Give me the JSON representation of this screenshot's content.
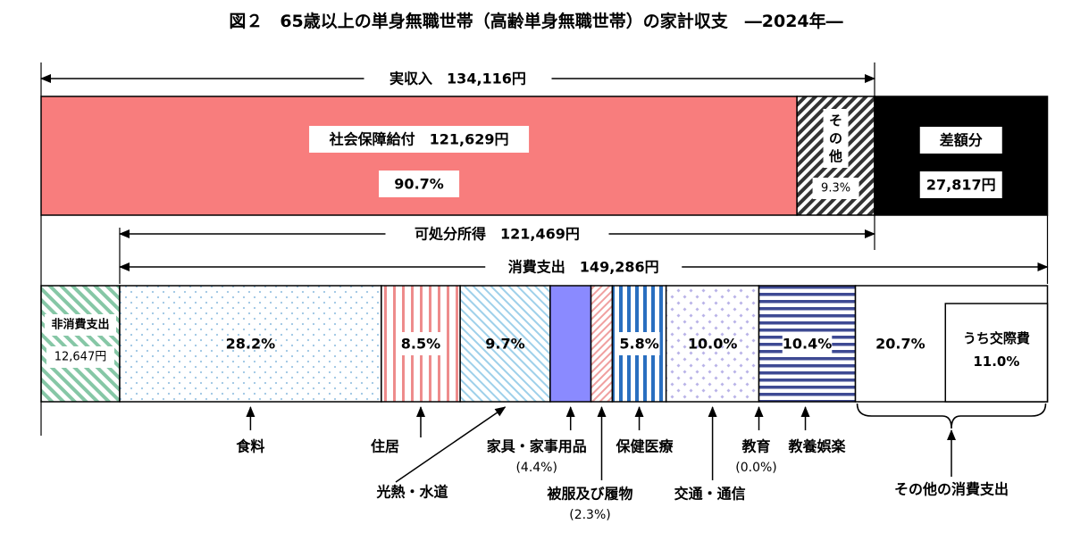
{
  "chart_data": {
    "type": "bar",
    "title": "図２　65歳以上の単身無職世帯（高齢単身無職世帯）の家計収支　―2024年―",
    "income": {
      "total_label": "実収入　134,116円",
      "total_value": 134116,
      "segments": [
        {
          "name": "社会保障給付",
          "label": "社会保障給付　121,629円",
          "value": 121629,
          "pct_label": "90.7%",
          "color": "#f87d7d"
        },
        {
          "name": "その他",
          "label": "その他",
          "pct_label": "9.3%",
          "value": 12487,
          "pattern": "diagonal-hatch"
        }
      ],
      "deficit": {
        "label": "差額分",
        "value_label": "27,817円",
        "value": 27817,
        "color": "#000000"
      }
    },
    "disposable_income": {
      "label": "可処分所得　121,469円",
      "value": 121469
    },
    "consumption": {
      "label": "消費支出　149,286円",
      "value": 149286
    },
    "non_consumption": {
      "label": "非消費支出",
      "value_label": "12,647円",
      "value": 12647,
      "pattern": "green-diagonal"
    },
    "expenditure_items": [
      {
        "key": "food",
        "name": "食料",
        "pct": 28.2,
        "pct_label": "28.2%",
        "pattern": "dots"
      },
      {
        "key": "housing",
        "name": "住居",
        "pct": 8.5,
        "pct_label": "8.5%",
        "pattern": "red-vertical-stripes"
      },
      {
        "key": "utilities",
        "name": "光熱・水道",
        "pct": 9.7,
        "pct_label": "9.7%",
        "pattern": "blue-diagonal"
      },
      {
        "key": "furniture",
        "name": "家具・家事用品",
        "pct": 4.4,
        "pct_label": "(4.4%)",
        "color": "#8a8aff"
      },
      {
        "key": "clothing",
        "name": "被服及び履物",
        "pct": 2.3,
        "pct_label": "(2.3%)",
        "pattern": "pink-diagonal"
      },
      {
        "key": "medical",
        "name": "保健医療",
        "pct": 5.8,
        "pct_label": "5.8%",
        "pattern": "blue-vertical-stripes"
      },
      {
        "key": "transport",
        "name": "交通・通信",
        "pct": 10.0,
        "pct_label": "10.0%",
        "pattern": "diamond-dots"
      },
      {
        "key": "education",
        "name": "教育",
        "pct": 0.0,
        "pct_label": "(0.0%)"
      },
      {
        "key": "recreation",
        "name": "教養娯楽",
        "pct": 10.4,
        "pct_label": "10.4%",
        "pattern": "navy-horizontal-stripes"
      },
      {
        "key": "other",
        "name": "その他の消費支出",
        "pct": 20.7,
        "pct_label": "20.7%",
        "sub": {
          "name": "うち交際費",
          "pct": 11.0,
          "pct_label": "11.0%"
        }
      }
    ]
  }
}
